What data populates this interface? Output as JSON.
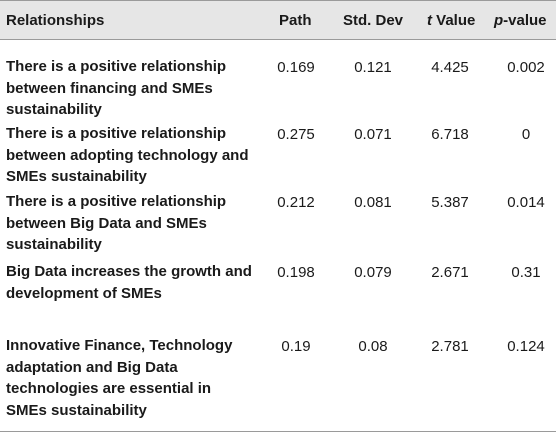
{
  "headers": {
    "relationships": "Relationships",
    "path": "Path",
    "std_dev": "Std. Dev",
    "t_value_t": "t",
    "t_value_rest": " Value",
    "p_value_p": "p",
    "p_value_rest": "-value"
  },
  "rows": [
    {
      "relationship": "There is a positive relationship between financing and SMEs sustainability",
      "path": "0.169",
      "std_dev": "0.121",
      "t_value": "4.425",
      "p_value": "0.002"
    },
    {
      "relationship": "There is a positive relationship between adopting technology and SMEs sustainability",
      "path": "0.275",
      "std_dev": "0.071",
      "t_value": "6.718",
      "p_value": "0"
    },
    {
      "relationship": "There is a positive relationship between Big Data and SMEs sustainability",
      "path": "0.212",
      "std_dev": "0.081",
      "t_value": "5.387",
      "p_value": "0.014"
    },
    {
      "relationship": "Big Data increases the growth and development of SMEs",
      "path": "0.198",
      "std_dev": "0.079",
      "t_value": "2.671",
      "p_value": "0.31"
    },
    {
      "relationship": "Innovative Finance, Technology adaptation and Big Data technologies are essential in SMEs sustainability",
      "path": "0.19",
      "std_dev": "0.08",
      "t_value": "2.781",
      "p_value": "0.124"
    }
  ]
}
